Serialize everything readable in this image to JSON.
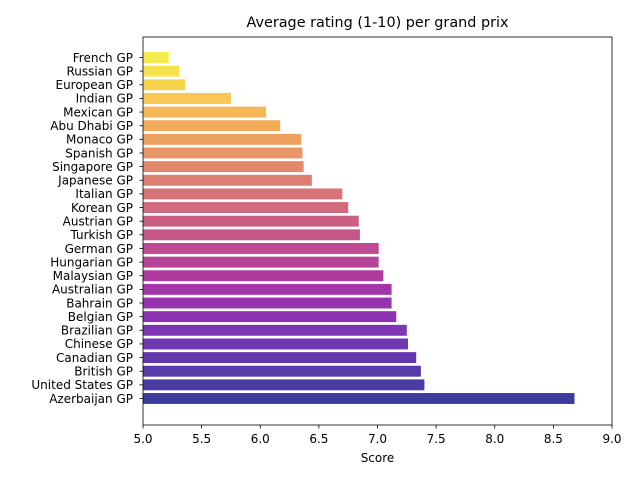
{
  "chart_data": {
    "type": "bar",
    "orientation": "horizontal",
    "title": "Average rating (1-10) per grand prix",
    "xlabel": "Score",
    "ylabel": "",
    "xlim": [
      5.0,
      9.0
    ],
    "xticks": [
      "5.0",
      "5.5",
      "6.0",
      "6.5",
      "7.0",
      "7.5",
      "8.0",
      "8.5",
      "9.0"
    ],
    "grid": false,
    "colormap": "plasma",
    "categories": [
      "Azerbaijan GP",
      "United States GP",
      "British GP",
      "Canadian GP",
      "Chinese GP",
      "Brazilian GP",
      "Belgian GP",
      "Bahrain GP",
      "Australian GP",
      "Malaysian GP",
      "Hungarian GP",
      "German GP",
      "Turkish GP",
      "Austrian GP",
      "Korean GP",
      "Italian GP",
      "Japanese GP",
      "Singapore GP",
      "Spanish GP",
      "Monaco GP",
      "Abu Dhabi GP",
      "Mexican GP",
      "Indian GP",
      "European GP",
      "Russian GP",
      "French GP"
    ],
    "values": [
      8.68,
      7.4,
      7.37,
      7.33,
      7.26,
      7.25,
      7.16,
      7.12,
      7.12,
      7.05,
      7.01,
      7.01,
      6.85,
      6.84,
      6.75,
      6.7,
      6.44,
      6.37,
      6.36,
      6.35,
      6.17,
      6.05,
      5.75,
      5.36,
      5.31,
      5.22
    ],
    "colors": [
      "#3a3c9b",
      "#4a3ca3",
      "#5a3aaa",
      "#6438ad",
      "#6f37b1",
      "#7d35b3",
      "#8d33b2",
      "#9932ad",
      "#a335a8",
      "#ae3aa0",
      "#b74399",
      "#be4a93",
      "#c5568a",
      "#cb5e84",
      "#d16a7e",
      "#d77478",
      "#dd7e72",
      "#e2896d",
      "#e99566",
      "#eda05f",
      "#f3ac5a",
      "#f6b856",
      "#f8c653",
      "#f7d44e",
      "#f7e14c",
      "#f4ee4a"
    ]
  }
}
